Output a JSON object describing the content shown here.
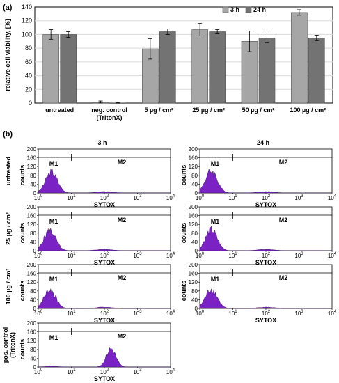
{
  "chart_data": [
    {
      "panel": "(a)",
      "type": "bar",
      "ylabel": "relative cell viability, [%]",
      "ylim": [
        0,
        140
      ],
      "yticks": [
        "0",
        "20",
        "40",
        "60",
        "80",
        "100",
        "120",
        "140"
      ],
      "grid": true,
      "legend_position": "top-right",
      "categories": [
        "untreated",
        "neg. control\n(TritonX)",
        "5 µg / cm²",
        "25 µg / cm²",
        "50 µg / cm²",
        "100 µg / cm²"
      ],
      "series": [
        {
          "name": "3 h",
          "color": "#a6a6a6",
          "values": [
            100,
            1,
            79,
            107,
            90,
            132
          ],
          "errors": [
            7,
            2,
            15,
            9,
            15,
            4
          ]
        },
        {
          "name": "24 h",
          "color": "#737373",
          "values": [
            100,
            0,
            104,
            104,
            95,
            95
          ],
          "errors": [
            4,
            0.5,
            4,
            3,
            7,
            4
          ]
        }
      ]
    },
    {
      "panel": "(b)",
      "type": "area",
      "column_titles": [
        "3 h",
        "24 h"
      ],
      "xlabel": "SYTOX",
      "ylabel": "counts",
      "x_scale": "log",
      "xlim": [
        1,
        10000
      ],
      "xticks": [
        "10",
        "10",
        "10",
        "10",
        "10"
      ],
      "xtick_exponents": [
        "0",
        "1",
        "2",
        "3",
        "4"
      ],
      "ylim": [
        0,
        200
      ],
      "yticks": [
        "0",
        "40",
        "80",
        "120",
        "160",
        "200"
      ],
      "fill_color": "#7b22c4",
      "gate_labels": [
        "M1",
        "M2"
      ],
      "gate_boundary": 10,
      "panels": [
        {
          "row": "untreated",
          "col": "3 h",
          "peak_log": 0.4,
          "peak": 95,
          "width": 0.25
        },
        {
          "row": "untreated",
          "col": "24 h",
          "peak_log": 0.35,
          "peak": 100,
          "width": 0.25
        },
        {
          "row": "25 µg / cm²",
          "col": "3 h",
          "peak_log": 0.35,
          "peak": 92,
          "width": 0.25
        },
        {
          "row": "25 µg / cm²",
          "col": "24 h",
          "peak_log": 0.35,
          "peak": 95,
          "width": 0.25
        },
        {
          "row": "100 µg / cm²",
          "col": "3 h",
          "peak_log": 0.35,
          "peak": 85,
          "width": 0.25
        },
        {
          "row": "100 µg / cm²",
          "col": "24 h",
          "peak_log": 0.35,
          "peak": 88,
          "width": 0.25
        },
        {
          "row": "pos. control\n(TritonX)",
          "col": "3 h",
          "peak_log": 2.2,
          "peak": 85,
          "width": 0.2
        }
      ]
    }
  ]
}
